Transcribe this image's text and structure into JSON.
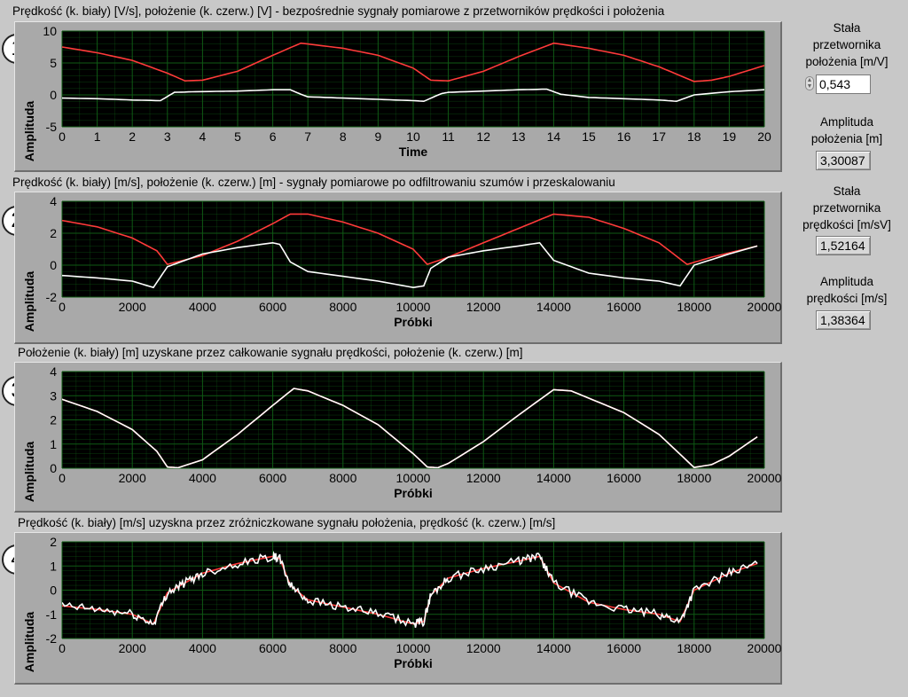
{
  "graphs": [
    {
      "id": 1,
      "title": "Prędkość (k. biały) [V/s], położenie (k. czerw.) [V] - bezpośrednie sygnały pomiarowe z przetworników prędkości i położenia",
      "xlabel": "Time",
      "ylabel": "Amplituda",
      "xlim": [
        0,
        20
      ],
      "ylim": [
        -5,
        10
      ],
      "xticks": [
        "0",
        "1",
        "2",
        "3",
        "4",
        "5",
        "6",
        "7",
        "8",
        "9",
        "10",
        "11",
        "12",
        "13",
        "14",
        "15",
        "16",
        "17",
        "18",
        "19",
        "20"
      ],
      "yticks": [
        "-5",
        "0",
        "5",
        "10"
      ]
    },
    {
      "id": 2,
      "title": "Prędkość (k. biały) [m/s], położenie (k. czerw.) [m] - sygnały pomiarowe po odfiltrowaniu szumów i przeskalowaniu",
      "xlabel": "Próbki",
      "ylabel": "Amplituda",
      "xlim": [
        0,
        20000
      ],
      "ylim": [
        -2,
        4
      ],
      "xticks": [
        "0",
        "2000",
        "4000",
        "6000",
        "8000",
        "10000",
        "12000",
        "14000",
        "16000",
        "18000",
        "20000"
      ],
      "yticks": [
        "-2",
        "0",
        "2",
        "4"
      ]
    },
    {
      "id": 3,
      "title": "Położenie (k. biały) [m] uzyskane przez całkowanie sygnału prędkości, położenie (k. czerw.) [m]",
      "xlabel": "Próbki",
      "ylabel": "Amplituda",
      "xlim": [
        0,
        20000
      ],
      "ylim": [
        0,
        4
      ],
      "xticks": [
        "0",
        "2000",
        "4000",
        "6000",
        "8000",
        "10000",
        "12000",
        "14000",
        "16000",
        "18000",
        "20000"
      ],
      "yticks": [
        "0",
        "1",
        "2",
        "3",
        "4"
      ]
    },
    {
      "id": 4,
      "title": "Prędkość (k. biały) [m/s] uzyskna przez zróżniczkowane sygnału położenia, prędkość (k. czerw.) [m/s]",
      "xlabel": "Próbki",
      "ylabel": "Amplituda",
      "xlim": [
        0,
        20000
      ],
      "ylim": [
        -2,
        2
      ],
      "xticks": [
        "0",
        "2000",
        "4000",
        "6000",
        "8000",
        "10000",
        "12000",
        "14000",
        "16000",
        "18000",
        "20000"
      ],
      "yticks": [
        "-2",
        "-1",
        "0",
        "1",
        "2"
      ]
    }
  ],
  "side_panel": {
    "pos_const_label": "Stała przetwornika położenia [m/V]",
    "pos_const_value": "0,543",
    "pos_amp_label": "Amplituda położenia [m]",
    "pos_amp_value": "3,30087",
    "vel_const_label": "Stała przetwornika prędkości [m/sV]",
    "vel_const_value": "1,52164",
    "vel_amp_label": "Amplituda prędkości [m/s]",
    "vel_amp_value": "1,38364"
  },
  "colors": {
    "plot_bg": "#000000",
    "grid": "#0f5a14",
    "white_trace": "#ffffff",
    "red_trace": "#ff3a3a"
  },
  "chart_data": [
    {
      "type": "line",
      "xlim": [
        0,
        20
      ],
      "ylim": [
        -5,
        10
      ],
      "grid": true,
      "series": [
        {
          "color": "#ff3a3a",
          "x": [
            0,
            1,
            2,
            3,
            3.5,
            4,
            5,
            6,
            6.8,
            8,
            9,
            10,
            10.5,
            11,
            12,
            13,
            14,
            15,
            16,
            17,
            18,
            18.5,
            19,
            20
          ],
          "y": [
            7.5,
            6.6,
            5.4,
            3.4,
            2.2,
            2.3,
            3.7,
            6.2,
            8.1,
            7.3,
            6.2,
            4.2,
            2.3,
            2.2,
            3.7,
            6.0,
            8.1,
            7.3,
            6.2,
            4.4,
            2.1,
            2.3,
            2.9,
            4.6
          ]
        },
        {
          "color": "#ffffff",
          "x": [
            0,
            1,
            2,
            2.8,
            3.2,
            3.8,
            5,
            6,
            6.5,
            6.8,
            7,
            8,
            9,
            10,
            10.3,
            10.8,
            11,
            12,
            13,
            13.8,
            14.2,
            15,
            16,
            17,
            17.5,
            18,
            19,
            20
          ],
          "y": [
            -0.5,
            -0.6,
            -0.8,
            -0.9,
            0.4,
            0.5,
            0.6,
            0.8,
            0.8,
            0.1,
            -0.3,
            -0.5,
            -0.7,
            -0.9,
            -1.0,
            0.2,
            0.4,
            0.6,
            0.8,
            0.9,
            0.1,
            -0.4,
            -0.6,
            -0.8,
            -1.0,
            0.0,
            0.5,
            0.8
          ]
        }
      ]
    },
    {
      "type": "line",
      "xlim": [
        0,
        20000
      ],
      "ylim": [
        -2,
        4
      ],
      "grid": true,
      "series": [
        {
          "color": "#ff3a3a",
          "x": [
            0,
            1000,
            2000,
            2700,
            3000,
            4000,
            5000,
            6000,
            6500,
            7000,
            8000,
            9000,
            10000,
            10400,
            11000,
            12000,
            13000,
            14000,
            15000,
            16000,
            17000,
            17800,
            18500,
            19800
          ],
          "y": [
            2.8,
            2.4,
            1.7,
            0.9,
            0.05,
            0.6,
            1.5,
            2.6,
            3.2,
            3.2,
            2.7,
            2.0,
            1.0,
            0.05,
            0.5,
            1.4,
            2.3,
            3.2,
            3.0,
            2.3,
            1.4,
            0.05,
            0.5,
            1.2
          ]
        },
        {
          "color": "#ffffff",
          "x": [
            0,
            1000,
            2000,
            2600,
            3000,
            3500,
            4000,
            5000,
            6000,
            6200,
            6500,
            7000,
            8000,
            9000,
            10000,
            10300,
            10500,
            11000,
            12000,
            13000,
            13600,
            14000,
            15000,
            16000,
            17000,
            17600,
            18000,
            19000,
            19800
          ],
          "y": [
            -0.65,
            -0.8,
            -1.0,
            -1.4,
            -0.1,
            0.3,
            0.7,
            1.1,
            1.4,
            1.3,
            0.2,
            -0.4,
            -0.7,
            -1.0,
            -1.4,
            -1.3,
            -0.2,
            0.5,
            0.9,
            1.2,
            1.4,
            0.3,
            -0.5,
            -0.8,
            -1.0,
            -1.3,
            0.0,
            0.7,
            1.2
          ]
        }
      ]
    },
    {
      "type": "line",
      "xlim": [
        0,
        20000
      ],
      "ylim": [
        0,
        4
      ],
      "grid": true,
      "series": [
        {
          "color": "#ff3a3a",
          "x": [
            0,
            1000,
            2000,
            2700,
            3000,
            3300,
            4000,
            5000,
            6000,
            6600,
            7000,
            8000,
            9000,
            10000,
            10400,
            10700,
            11000,
            12000,
            13000,
            14000,
            14500,
            15000,
            16000,
            17000,
            18000,
            18500,
            19000,
            19800
          ],
          "y": [
            2.85,
            2.35,
            1.6,
            0.7,
            0.05,
            0.02,
            0.35,
            1.4,
            2.6,
            3.3,
            3.2,
            2.6,
            1.8,
            0.6,
            0.05,
            0.02,
            0.2,
            1.1,
            2.2,
            3.25,
            3.2,
            2.9,
            2.3,
            1.4,
            0.03,
            0.15,
            0.5,
            1.3
          ]
        },
        {
          "color": "#ffffff",
          "x": [
            0,
            1000,
            2000,
            2700,
            3000,
            3300,
            4000,
            5000,
            6000,
            6600,
            7000,
            8000,
            9000,
            10000,
            10400,
            10700,
            11000,
            12000,
            13000,
            14000,
            14500,
            15000,
            16000,
            17000,
            18000,
            18500,
            19000,
            19800
          ],
          "y": [
            2.85,
            2.35,
            1.6,
            0.7,
            0.05,
            0.02,
            0.35,
            1.4,
            2.6,
            3.3,
            3.2,
            2.6,
            1.8,
            0.6,
            0.05,
            0.02,
            0.2,
            1.1,
            2.2,
            3.25,
            3.2,
            2.9,
            2.3,
            1.4,
            0.03,
            0.15,
            0.5,
            1.3
          ]
        }
      ]
    },
    {
      "type": "line",
      "xlim": [
        0,
        20000
      ],
      "ylim": [
        -2,
        2
      ],
      "grid": true,
      "series": [
        {
          "color": "#ff3a3a",
          "x": [
            0,
            1000,
            2000,
            2600,
            3000,
            3500,
            4000,
            5000,
            6000,
            6200,
            6500,
            7000,
            8000,
            9000,
            10000,
            10300,
            10500,
            11000,
            12000,
            13000,
            13600,
            14000,
            15000,
            16000,
            17000,
            17600,
            18000,
            19000,
            19800
          ],
          "y": [
            -0.65,
            -0.8,
            -1.0,
            -1.4,
            -0.1,
            0.3,
            0.7,
            1.1,
            1.4,
            1.3,
            0.2,
            -0.4,
            -0.7,
            -1.0,
            -1.4,
            -1.3,
            -0.2,
            0.5,
            0.9,
            1.2,
            1.4,
            0.3,
            -0.5,
            -0.8,
            -1.0,
            -1.3,
            0.0,
            0.7,
            1.1
          ]
        },
        {
          "color": "#ffffff",
          "noise": 0.18,
          "x": [
            0,
            1000,
            2000,
            2600,
            3000,
            3500,
            4000,
            5000,
            6000,
            6200,
            6500,
            7000,
            8000,
            9000,
            10000,
            10300,
            10500,
            11000,
            12000,
            13000,
            13600,
            14000,
            15000,
            16000,
            17000,
            17600,
            18000,
            19000,
            19800
          ],
          "y": [
            -0.65,
            -0.8,
            -1.0,
            -1.4,
            -0.1,
            0.3,
            0.7,
            1.1,
            1.4,
            1.3,
            0.2,
            -0.4,
            -0.7,
            -1.0,
            -1.4,
            -1.3,
            -0.2,
            0.5,
            0.9,
            1.2,
            1.4,
            0.3,
            -0.5,
            -0.8,
            -1.0,
            -1.3,
            0.0,
            0.7,
            1.1
          ]
        }
      ]
    }
  ]
}
